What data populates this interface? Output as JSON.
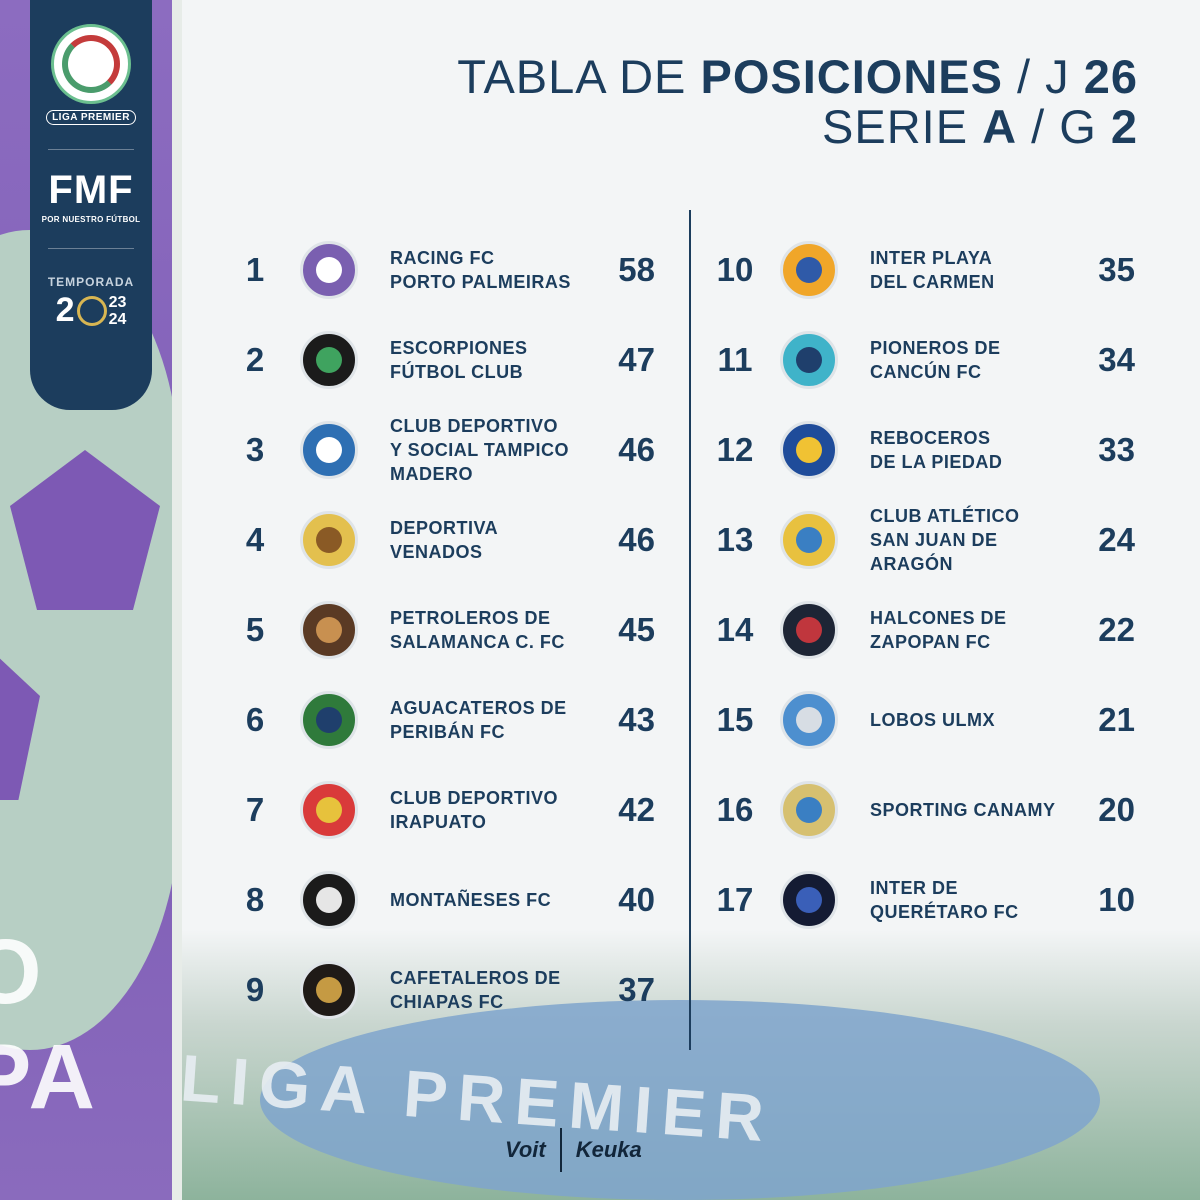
{
  "header": {
    "title_prefix": "TABLA DE ",
    "title_bold": "POSICIONES",
    "title_suffix": " / J ",
    "title_round": "26",
    "subtitle_prefix": "SERIE ",
    "subtitle_series": "A",
    "subtitle_sep": " / G ",
    "subtitle_group": "2"
  },
  "badge": {
    "league": "LIGA PREMIER",
    "federation": "FMF",
    "federation_slogan": "POR NUESTRO FÚTBOL",
    "season_label": "TEMPORADA",
    "season_big_left": "2",
    "season_top": "23",
    "season_bottom": "24"
  },
  "standings": [
    {
      "rank": "1",
      "team_line1": "RACING FC",
      "team_line2": "PORTO PALMEIRAS",
      "team_line3": "",
      "points": "58",
      "crest_color": "#7a5fb0",
      "crest_inner": "#ffffff"
    },
    {
      "rank": "2",
      "team_line1": "ESCORPIONES",
      "team_line2": "FÚTBOL CLUB",
      "team_line3": "",
      "points": "47",
      "crest_color": "#1b1b1b",
      "crest_inner": "#3fa35f"
    },
    {
      "rank": "3",
      "team_line1": "CLUB DEPORTIVO",
      "team_line2": "Y SOCIAL TAMPICO",
      "team_line3": "MADERO",
      "points": "46",
      "crest_color": "#2e6fb3",
      "crest_inner": "#ffffff"
    },
    {
      "rank": "4",
      "team_line1": "DEPORTIVA",
      "team_line2": "VENADOS",
      "team_line3": "",
      "points": "46",
      "crest_color": "#e3c04e",
      "crest_inner": "#8a5a25"
    },
    {
      "rank": "5",
      "team_line1": "PETROLEROS DE",
      "team_line2": "SALAMANCA C. FC",
      "team_line3": "",
      "points": "45",
      "crest_color": "#5a3a24",
      "crest_inner": "#c89050"
    },
    {
      "rank": "6",
      "team_line1": "AGUACATEROS DE",
      "team_line2": "PERIBÁN FC",
      "team_line3": "",
      "points": "43",
      "crest_color": "#2f7a3b",
      "crest_inner": "#1f3f6c"
    },
    {
      "rank": "7",
      "team_line1": "CLUB DEPORTIVO",
      "team_line2": "IRAPUATO",
      "team_line3": "",
      "points": "42",
      "crest_color": "#d93a3a",
      "crest_inner": "#e7c23c"
    },
    {
      "rank": "8",
      "team_line1": "MONTAÑESES FC",
      "team_line2": "",
      "team_line3": "",
      "points": "40",
      "crest_color": "#1b1b1b",
      "crest_inner": "#e6e6e6"
    },
    {
      "rank": "9",
      "team_line1": "CAFETALEROS DE",
      "team_line2": "CHIAPAS FC",
      "team_line3": "",
      "points": "37",
      "crest_color": "#1f1a17",
      "crest_inner": "#c59a43"
    },
    {
      "rank": "10",
      "team_line1": "INTER PLAYA",
      "team_line2": "DEL CARMEN",
      "team_line3": "",
      "points": "35",
      "crest_color": "#f0a629",
      "crest_inner": "#2f5aa8"
    },
    {
      "rank": "11",
      "team_line1": "PIONEROS DE",
      "team_line2": "CANCÚN FC",
      "team_line3": "",
      "points": "34",
      "crest_color": "#3fb3c9",
      "crest_inner": "#1f3f6c"
    },
    {
      "rank": "12",
      "team_line1": "REBOCEROS",
      "team_line2": "DE LA PIEDAD",
      "team_line3": "",
      "points": "33",
      "crest_color": "#1f4c9a",
      "crest_inner": "#f0c233"
    },
    {
      "rank": "13",
      "team_line1": "CLUB ATLÉTICO",
      "team_line2": "SAN JUAN DE",
      "team_line3": "ARAGÓN",
      "points": "24",
      "crest_color": "#e8c13f",
      "crest_inner": "#3a7fc3"
    },
    {
      "rank": "14",
      "team_line1": "HALCONES DE",
      "team_line2": "ZAPOPAN FC",
      "team_line3": "",
      "points": "22",
      "crest_color": "#1d2535",
      "crest_inner": "#c0363d"
    },
    {
      "rank": "15",
      "team_line1": "LOBOS ULMX",
      "team_line2": "",
      "team_line3": "",
      "points": "21",
      "crest_color": "#4d8fcf",
      "crest_inner": "#d7dde4"
    },
    {
      "rank": "16",
      "team_line1": "SPORTING CANAMY",
      "team_line2": "",
      "team_line3": "",
      "points": "20",
      "crest_color": "#d6c070",
      "crest_inner": "#3a7fc3"
    },
    {
      "rank": "17",
      "team_line1": "INTER DE",
      "team_line2": "QUERÉTARO FC",
      "team_line3": "",
      "points": "10",
      "crest_color": "#141b33",
      "crest_inner": "#3a5fb8"
    }
  ],
  "background": {
    "left_text": "O PA",
    "flag_text": "LIGA PREMIER"
  },
  "sponsors": {
    "brand1": "Voit",
    "brand2": "Keuka"
  },
  "colors": {
    "navy": "#1c3d5d",
    "purple": "#7f5db6",
    "mint": "#b7cfc4"
  }
}
